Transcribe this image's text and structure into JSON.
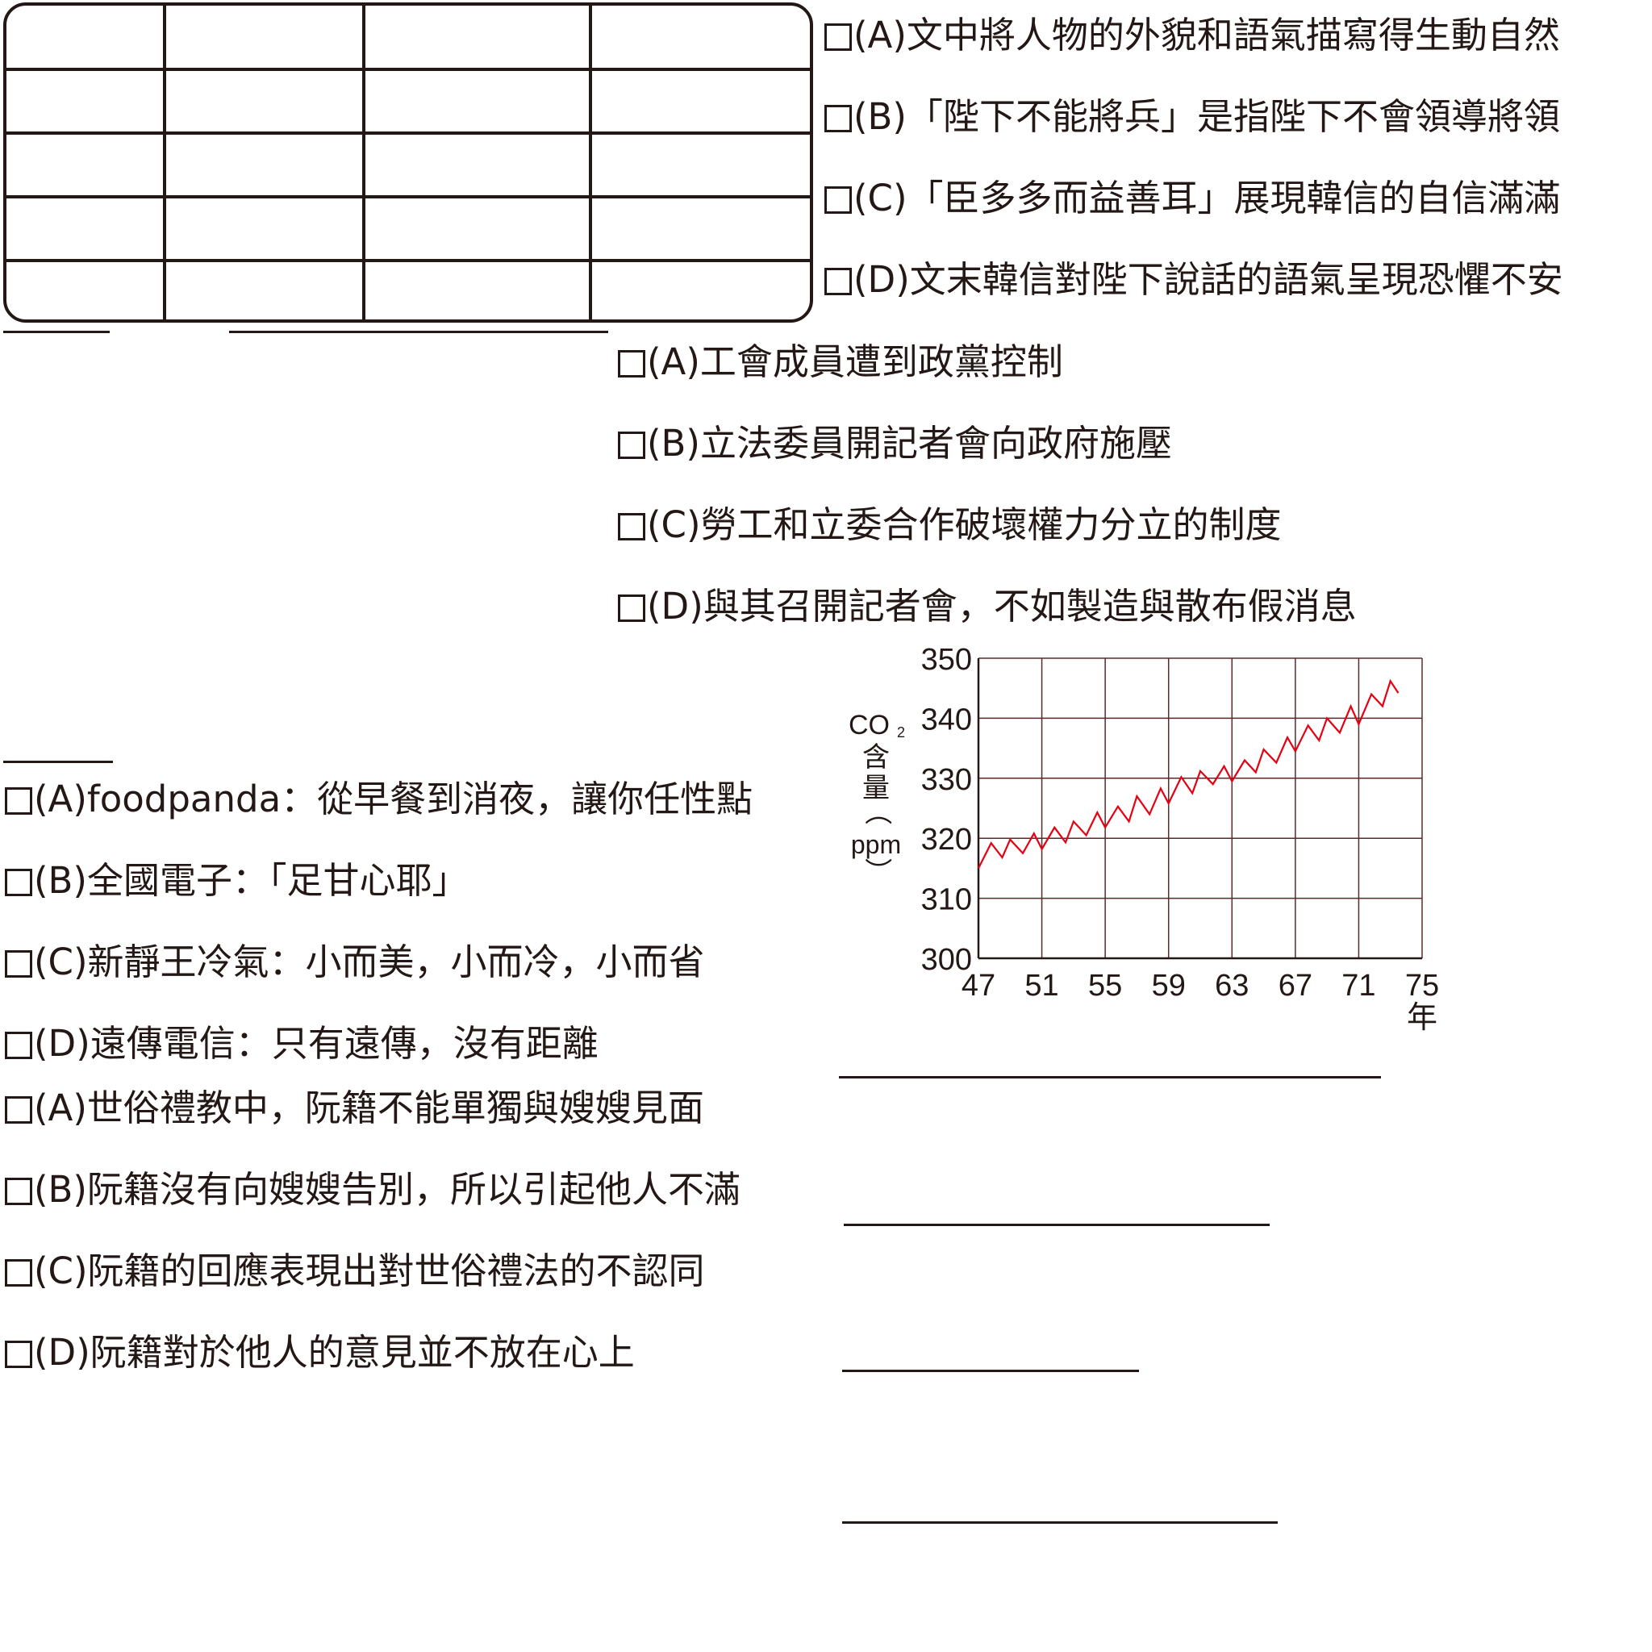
{
  "q1_options": [
    "(A)文中將人物的外貌和語氣描寫得生動自然",
    "(B)「陛下不能將兵」是指陛下不會領導將領",
    "(C)「臣多多而益善耳」展現韓信的自信滿滿",
    "(D)文末韓信對陛下說話的語氣呈現恐懼不安"
  ],
  "q2_options": [
    "(A)工會成員遭到政黨控制",
    "(B)立法委員開記者會向政府施壓",
    "(C)勞工和立委合作破壞權力分立的制度",
    "(D)與其召開記者會，不如製造與散布假消息"
  ],
  "q3_options": [
    "(A)foodpanda：從早餐到消夜，讓你任性點",
    "(B)全國電子：「足甘心耶」",
    "(C)新靜王冷氣：小而美，小而冷，小而省",
    "(D)遠傳電信：只有遠傳，沒有距離"
  ],
  "q4_options": [
    "(A)世俗禮教中，阮籍不能單獨與嫂嫂見面",
    "(B)阮籍沒有向嫂嫂告別，所以引起他人不滿",
    "(C)阮籍的回應表現出對世俗禮法的不認同",
    "(D)阮籍對於他人的意見並不放在心上"
  ],
  "chart_data": {
    "type": "line",
    "ylabel_parts": [
      "CO",
      "2",
      "含",
      "量",
      "（",
      "ppm",
      "）"
    ],
    "xlabel": "年",
    "x_ticks": [
      "47",
      "51",
      "55",
      "59",
      "63",
      "67",
      "71",
      "75"
    ],
    "y_ticks": [
      "350",
      "340",
      "330",
      "320",
      "310",
      "300"
    ],
    "xlim": [
      47,
      75
    ],
    "ylim": [
      300,
      350
    ],
    "grid": true,
    "line_color": "#e60012",
    "series": [
      {
        "x": [
          47,
          47.8,
          48.5,
          49,
          49.8,
          50.5,
          51,
          51.8,
          52.5,
          53,
          53.8,
          54.5,
          55,
          55.8,
          56.5,
          57,
          57.8,
          58.5,
          59,
          59.8,
          60.5,
          61,
          61.8,
          62.5,
          63,
          63.8,
          64.5,
          65,
          65.8,
          66.5,
          67,
          67.8,
          68.5,
          69,
          69.8,
          70.5,
          71,
          71.8,
          72.5,
          73,
          73.5
        ],
        "y": [
          315,
          319.2,
          316.8,
          319.8,
          317.5,
          320.8,
          318.2,
          321.8,
          319.3,
          322.8,
          320.5,
          324.3,
          321.8,
          325.3,
          322.8,
          327,
          324,
          328.3,
          325.8,
          330.2,
          327.5,
          331.2,
          329,
          332,
          329.5,
          333,
          331,
          334.8,
          332.6,
          336.8,
          334.5,
          338.8,
          336.3,
          340,
          337.6,
          342,
          339,
          344,
          342,
          346.2,
          344.2
        ]
      }
    ]
  }
}
